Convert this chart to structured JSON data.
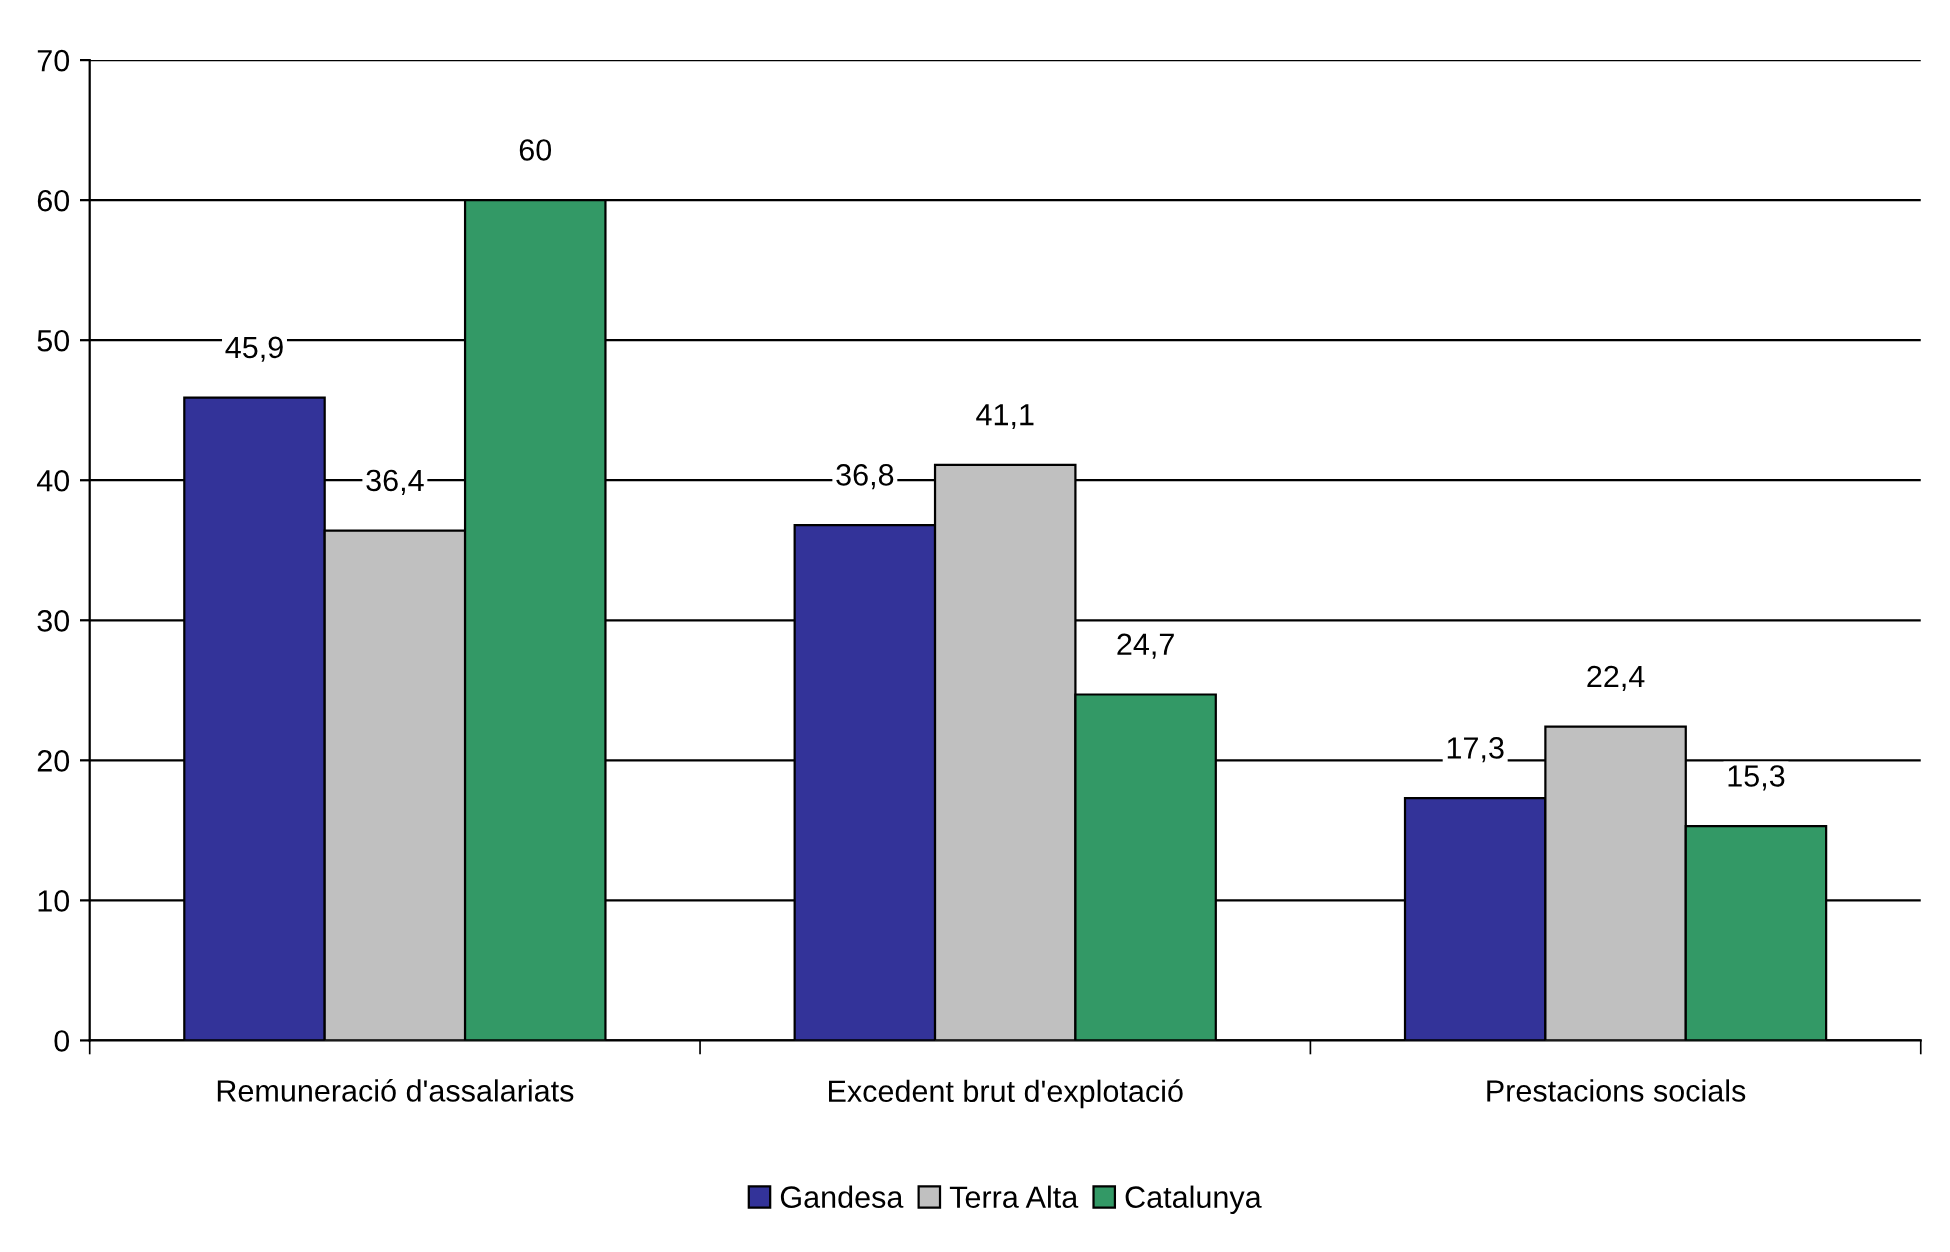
{
  "chart_data": {
    "type": "bar",
    "categories": [
      "Remuneració d'assalariats",
      "Excedent brut d'explotació",
      "Prestacions socials"
    ],
    "series": [
      {
        "name": "Gandesa",
        "color": "#333399",
        "values": [
          45.9,
          36.8,
          17.3
        ],
        "value_labels": [
          "45,9",
          "36,8",
          "17,3"
        ]
      },
      {
        "name": "Terra Alta",
        "color": "#c0c0c0",
        "values": [
          36.4,
          41.1,
          22.4
        ],
        "value_labels": [
          "36,4",
          "41,1",
          "22,4"
        ]
      },
      {
        "name": "Catalunya",
        "color": "#339966",
        "values": [
          60,
          24.7,
          15.3
        ],
        "value_labels": [
          "60",
          "24,7",
          "15,3"
        ]
      }
    ],
    "ylim": [
      0,
      70
    ],
    "yticks": [
      0,
      10,
      20,
      30,
      40,
      50,
      60,
      70
    ],
    "grid": "y",
    "legend": "bottom"
  }
}
